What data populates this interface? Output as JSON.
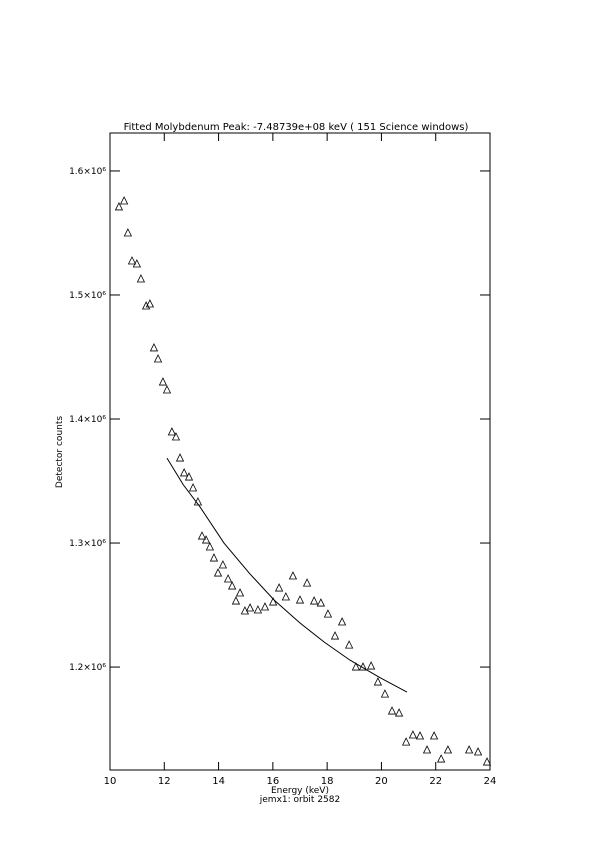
{
  "chart_data": {
    "type": "scatter",
    "title": "Fitted Molybdenum Peak:  -7.48739e+08 keV (         151 Science windows)",
    "x_label": "Energy (keV)",
    "subtitle": "jemx1: orbit 2582",
    "y_label": "Detector counts",
    "xlim": [
      10,
      24
    ],
    "xticks": [
      10,
      12,
      14,
      16,
      18,
      20,
      22,
      24
    ],
    "ylim": [
      1117000,
      1630600
    ],
    "yticks": [
      {
        "value": 1200000,
        "label": "1.2×10⁶"
      },
      {
        "value": 1300000,
        "label": "1.3×10⁶"
      },
      {
        "value": 1400000,
        "label": "1.4×10⁶"
      },
      {
        "value": 1500000,
        "label": "1.5×10⁶"
      },
      {
        "value": 1600000,
        "label": "1.6×10⁶"
      }
    ],
    "color": "#000000",
    "series": [
      {
        "style": "markers",
        "x": [
          10.33,
          10.52,
          10.66,
          10.81,
          10.99,
          11.14,
          11.33,
          11.47,
          11.62,
          11.77,
          11.95,
          12.1,
          12.28,
          12.43,
          12.58,
          12.73,
          12.91,
          13.06,
          13.24,
          13.39,
          13.54,
          13.68,
          13.83,
          13.98,
          14.16,
          14.35,
          14.5,
          14.64,
          14.79,
          14.97,
          15.16,
          15.45,
          15.71,
          16.01,
          16.23,
          16.48,
          16.74,
          17.0,
          17.26,
          17.52,
          17.77,
          18.03,
          18.29,
          18.55,
          18.81,
          19.06,
          19.32,
          19.62,
          19.87,
          20.13,
          20.39,
          20.65,
          20.91,
          21.16,
          21.42,
          21.68,
          21.94,
          22.2,
          22.45,
          23.23,
          23.56,
          23.89
        ],
        "values": [
          1571000,
          1575800,
          1550000,
          1527400,
          1525000,
          1512900,
          1491100,
          1492700,
          1457300,
          1448400,
          1429800,
          1423400,
          1389500,
          1385500,
          1368500,
          1356500,
          1353200,
          1344400,
          1333100,
          1305600,
          1302400,
          1296800,
          1287900,
          1275800,
          1282300,
          1271000,
          1265300,
          1253200,
          1259700,
          1245200,
          1247600,
          1246000,
          1248400,
          1252400,
          1263700,
          1256500,
          1273400,
          1254000,
          1267700,
          1253200,
          1251600,
          1242700,
          1225000,
          1236300,
          1217700,
          1200000,
          1200000,
          1200800,
          1187900,
          1178200,
          1164500,
          1162900,
          1139500,
          1145200,
          1144400,
          1133100,
          1144400,
          1125800,
          1133100,
          1133100,
          1131500,
          1123400
        ]
      },
      {
        "style": "line",
        "x": [
          12.1,
          12.7,
          13.32,
          14.2,
          15.16,
          16.05,
          17.0,
          17.9,
          18.84,
          19.9,
          20.94
        ],
        "values": [
          1368500,
          1347000,
          1329000,
          1300000,
          1275000,
          1254000,
          1235500,
          1220000,
          1205600,
          1192000,
          1179800
        ]
      }
    ]
  }
}
